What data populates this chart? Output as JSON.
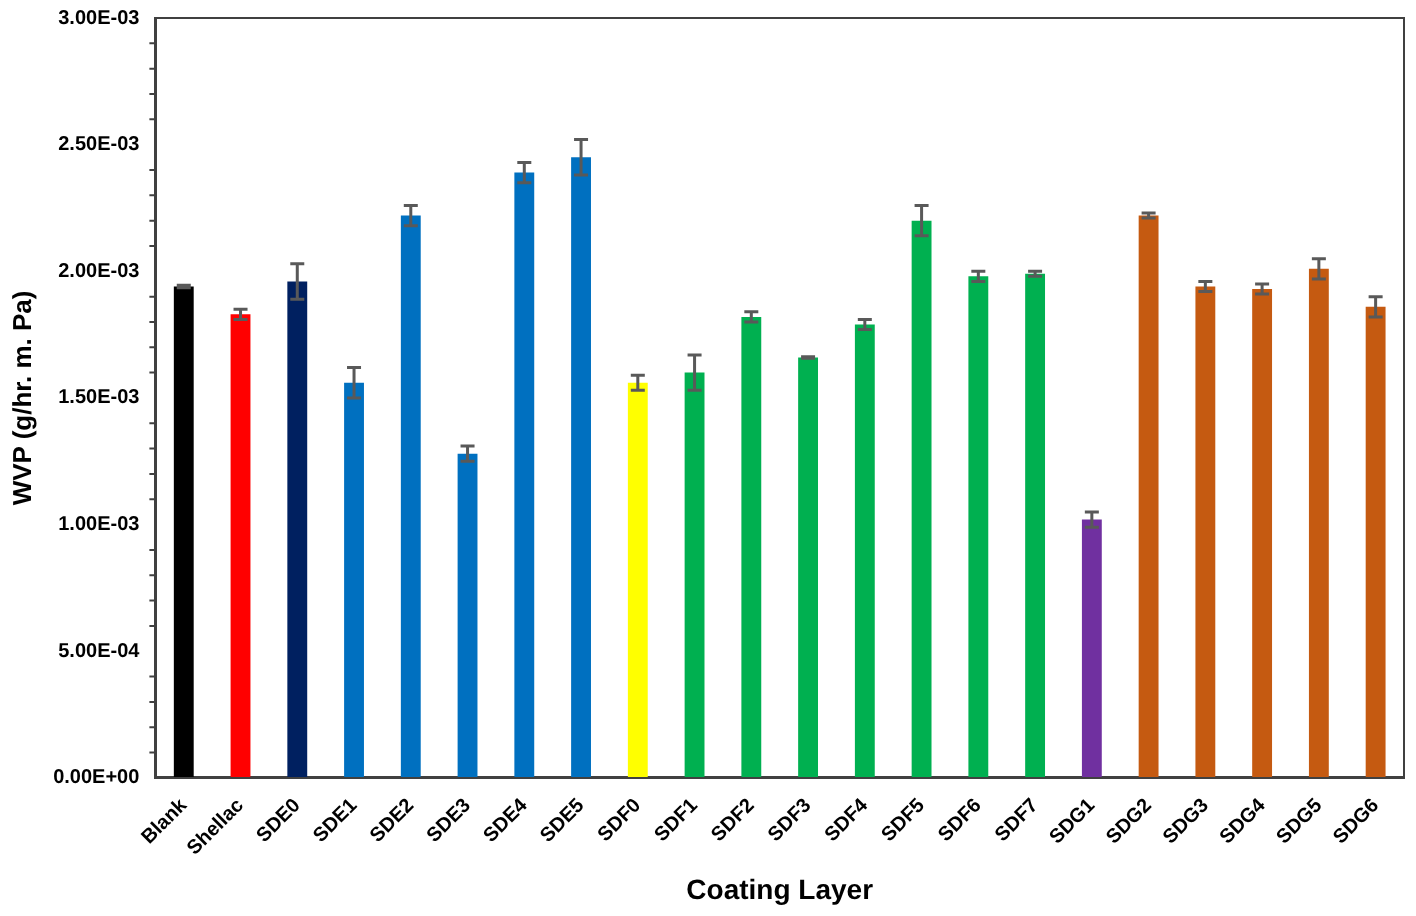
{
  "chart_data": {
    "type": "bar",
    "xlabel": "Coating Layer",
    "ylabel": "WVP (g/hr. m. Pa)",
    "categories": [
      "Blank",
      "Shellac",
      "SDE0",
      "SDE1",
      "SDE2",
      "SDE3",
      "SDE4",
      "SDE5",
      "SDF0",
      "SDF1",
      "SDF2",
      "SDF3",
      "SDF4",
      "SDF5",
      "SDF6",
      "SDF7",
      "SDG1",
      "SDG2",
      "SDG3",
      "SDG4",
      "SDG5",
      "SDG6"
    ],
    "values": [
      0.00194,
      0.00183,
      0.00196,
      0.00156,
      0.00222,
      0.00128,
      0.00239,
      0.00245,
      0.00156,
      0.0016,
      0.00182,
      0.00166,
      0.00179,
      0.0022,
      0.00198,
      0.00199,
      0.00102,
      0.00222,
      0.00194,
      0.00193,
      0.00201,
      0.00186
    ],
    "errors": [
      5e-06,
      2e-05,
      7e-05,
      6e-05,
      4e-05,
      3e-05,
      4e-05,
      7e-05,
      3e-05,
      7e-05,
      2e-05,
      3e-06,
      2e-05,
      6e-05,
      2e-05,
      1e-05,
      3e-05,
      1e-05,
      2e-05,
      2e-05,
      4e-05,
      4e-05
    ],
    "colors": [
      "#000000",
      "#ff0000",
      "#002060",
      "#0070c0",
      "#0070c0",
      "#0070c0",
      "#0070c0",
      "#0070c0",
      "#ffff00",
      "#00b050",
      "#00b050",
      "#00b050",
      "#00b050",
      "#00b050",
      "#00b050",
      "#00b050",
      "#7030a0",
      "#c55a11",
      "#c55a11",
      "#c55a11",
      "#c55a11",
      "#c55a11"
    ],
    "ylim": [
      0,
      0.003
    ],
    "yticks": [
      {
        "value": 0,
        "label": "0.00E+00"
      },
      {
        "value": 0.0005,
        "label": "5.00E-04"
      },
      {
        "value": 0.001,
        "label": "1.00E-03"
      },
      {
        "value": 0.0015,
        "label": "1.50E-03"
      },
      {
        "value": 0.002,
        "label": "2.00E-03"
      },
      {
        "value": 0.0025,
        "label": "2.50E-03"
      },
      {
        "value": 0.003,
        "label": "3.00E-03"
      }
    ],
    "grid": false,
    "legend": false
  }
}
